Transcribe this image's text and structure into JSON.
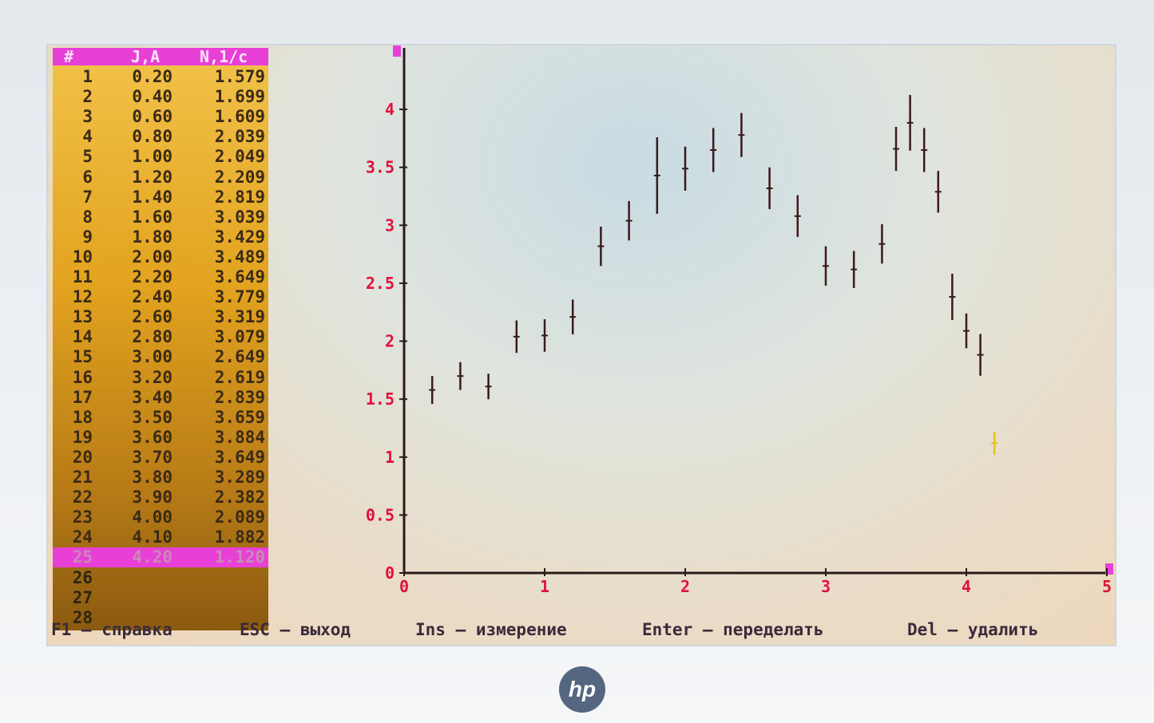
{
  "table": {
    "headers": {
      "num": "#",
      "current": "J,A",
      "rate": "N,1/c"
    },
    "rows": [
      {
        "num": "1",
        "j": "0.20",
        "n": "1.579"
      },
      {
        "num": "2",
        "j": "0.40",
        "n": "1.699"
      },
      {
        "num": "3",
        "j": "0.60",
        "n": "1.609"
      },
      {
        "num": "4",
        "j": "0.80",
        "n": "2.039"
      },
      {
        "num": "5",
        "j": "1.00",
        "n": "2.049"
      },
      {
        "num": "6",
        "j": "1.20",
        "n": "2.209"
      },
      {
        "num": "7",
        "j": "1.40",
        "n": "2.819"
      },
      {
        "num": "8",
        "j": "1.60",
        "n": "3.039"
      },
      {
        "num": "9",
        "j": "1.80",
        "n": "3.429"
      },
      {
        "num": "10",
        "j": "2.00",
        "n": "3.489"
      },
      {
        "num": "11",
        "j": "2.20",
        "n": "3.649"
      },
      {
        "num": "12",
        "j": "2.40",
        "n": "3.779"
      },
      {
        "num": "13",
        "j": "2.60",
        "n": "3.319"
      },
      {
        "num": "14",
        "j": "2.80",
        "n": "3.079"
      },
      {
        "num": "15",
        "j": "3.00",
        "n": "2.649"
      },
      {
        "num": "16",
        "j": "3.20",
        "n": "2.619"
      },
      {
        "num": "17",
        "j": "3.40",
        "n": "2.839"
      },
      {
        "num": "18",
        "j": "3.50",
        "n": "3.659"
      },
      {
        "num": "19",
        "j": "3.60",
        "n": "3.884"
      },
      {
        "num": "20",
        "j": "3.70",
        "n": "3.649"
      },
      {
        "num": "21",
        "j": "3.80",
        "n": "3.289"
      },
      {
        "num": "22",
        "j": "3.90",
        "n": "2.382"
      },
      {
        "num": "23",
        "j": "4.00",
        "n": "2.089"
      },
      {
        "num": "24",
        "j": "4.10",
        "n": "1.882"
      },
      {
        "num": "25",
        "j": "4.20",
        "n": "1.120",
        "selected": true
      },
      {
        "num": "26",
        "j": "",
        "n": ""
      },
      {
        "num": "27",
        "j": "",
        "n": ""
      },
      {
        "num": "28",
        "j": "",
        "n": ""
      }
    ]
  },
  "status_bar": {
    "f1": "F1 – справка",
    "esc": "ESC – выход",
    "ins": "Ins – измерение",
    "enter": "Enter – переделать",
    "del": "Del – удалить"
  },
  "brand": "hp",
  "colors": {
    "highlight": "#e83fd6",
    "axis_labels": "#e0103a",
    "error_bar": "#3a1a1a",
    "error_bar_active": "#e8c21a"
  },
  "chart_data": {
    "type": "scatter",
    "xlim": [
      0,
      5
    ],
    "ylim": [
      0,
      4.2
    ],
    "x_ticks": [
      "0",
      "1",
      "2",
      "3",
      "4",
      "5"
    ],
    "y_ticks": [
      "0",
      "0.5",
      "1",
      "1.5",
      "2",
      "2.5",
      "3",
      "3.5",
      "4"
    ],
    "points": [
      {
        "x": 0.2,
        "y": 1.579,
        "err": 0.12
      },
      {
        "x": 0.4,
        "y": 1.699,
        "err": 0.12
      },
      {
        "x": 0.6,
        "y": 1.609,
        "err": 0.11
      },
      {
        "x": 0.8,
        "y": 2.039,
        "err": 0.14
      },
      {
        "x": 1.0,
        "y": 2.049,
        "err": 0.14
      },
      {
        "x": 1.2,
        "y": 2.209,
        "err": 0.15
      },
      {
        "x": 1.4,
        "y": 2.819,
        "err": 0.17
      },
      {
        "x": 1.6,
        "y": 3.039,
        "err": 0.17
      },
      {
        "x": 1.8,
        "y": 3.429,
        "err": 0.33
      },
      {
        "x": 2.0,
        "y": 3.489,
        "err": 0.19
      },
      {
        "x": 2.2,
        "y": 3.649,
        "err": 0.19
      },
      {
        "x": 2.4,
        "y": 3.779,
        "err": 0.19
      },
      {
        "x": 2.6,
        "y": 3.319,
        "err": 0.18
      },
      {
        "x": 2.8,
        "y": 3.079,
        "err": 0.18
      },
      {
        "x": 3.0,
        "y": 2.649,
        "err": 0.17
      },
      {
        "x": 3.2,
        "y": 2.619,
        "err": 0.16
      },
      {
        "x": 3.4,
        "y": 2.839,
        "err": 0.17
      },
      {
        "x": 3.5,
        "y": 3.659,
        "err": 0.19
      },
      {
        "x": 3.6,
        "y": 3.884,
        "err": 0.24
      },
      {
        "x": 3.7,
        "y": 3.649,
        "err": 0.19
      },
      {
        "x": 3.8,
        "y": 3.289,
        "err": 0.18
      },
      {
        "x": 3.9,
        "y": 2.382,
        "err": 0.2
      },
      {
        "x": 4.0,
        "y": 2.089,
        "err": 0.15
      },
      {
        "x": 4.1,
        "y": 1.882,
        "err": 0.18
      },
      {
        "x": 4.2,
        "y": 1.12,
        "err": 0.1,
        "active": true
      }
    ]
  }
}
